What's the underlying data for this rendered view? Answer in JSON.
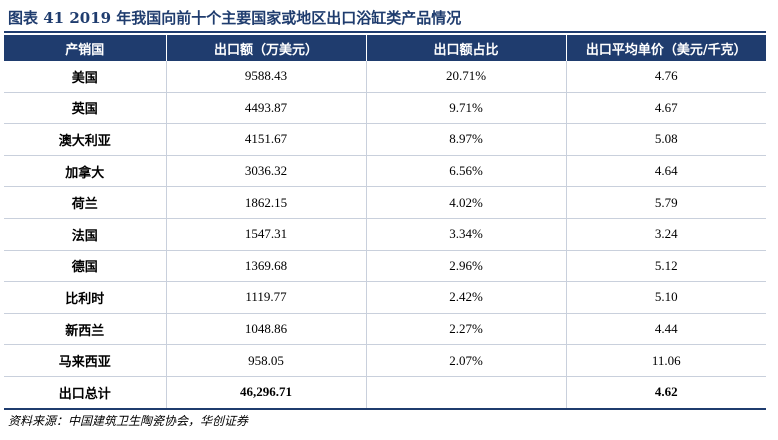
{
  "title": "图表 41    2019 年我国向前十个主要国家或地区出口浴缸类产品情况",
  "table": {
    "headers": [
      "产销国",
      "出口额（万美元）",
      "出口额占比",
      "出口平均单价（美元/千克）"
    ],
    "rows": [
      {
        "country": "美国",
        "amount": "9588.43",
        "share": "20.71%",
        "price": "4.76"
      },
      {
        "country": "英国",
        "amount": "4493.87",
        "share": "9.71%",
        "price": "4.67"
      },
      {
        "country": "澳大利亚",
        "amount": "4151.67",
        "share": "8.97%",
        "price": "5.08"
      },
      {
        "country": "加拿大",
        "amount": "3036.32",
        "share": "6.56%",
        "price": "4.64"
      },
      {
        "country": "荷兰",
        "amount": "1862.15",
        "share": "4.02%",
        "price": "5.79"
      },
      {
        "country": "法国",
        "amount": "1547.31",
        "share": "3.34%",
        "price": "3.24"
      },
      {
        "country": "德国",
        "amount": "1369.68",
        "share": "2.96%",
        "price": "5.12"
      },
      {
        "country": "比利时",
        "amount": "1119.77",
        "share": "2.42%",
        "price": "5.10"
      },
      {
        "country": "新西兰",
        "amount": "1048.86",
        "share": "2.27%",
        "price": "4.44"
      },
      {
        "country": "马来西亚",
        "amount": "958.05",
        "share": "2.07%",
        "price": "11.06"
      }
    ],
    "total": {
      "label": "出口总计",
      "amount": "46,296.71",
      "share": "",
      "price": "4.62"
    }
  },
  "source": "资料来源：中国建筑卫生陶瓷协会，华创证券",
  "colors": {
    "header_bg": "#1f3c6e",
    "grid": "#c9d0dc"
  }
}
